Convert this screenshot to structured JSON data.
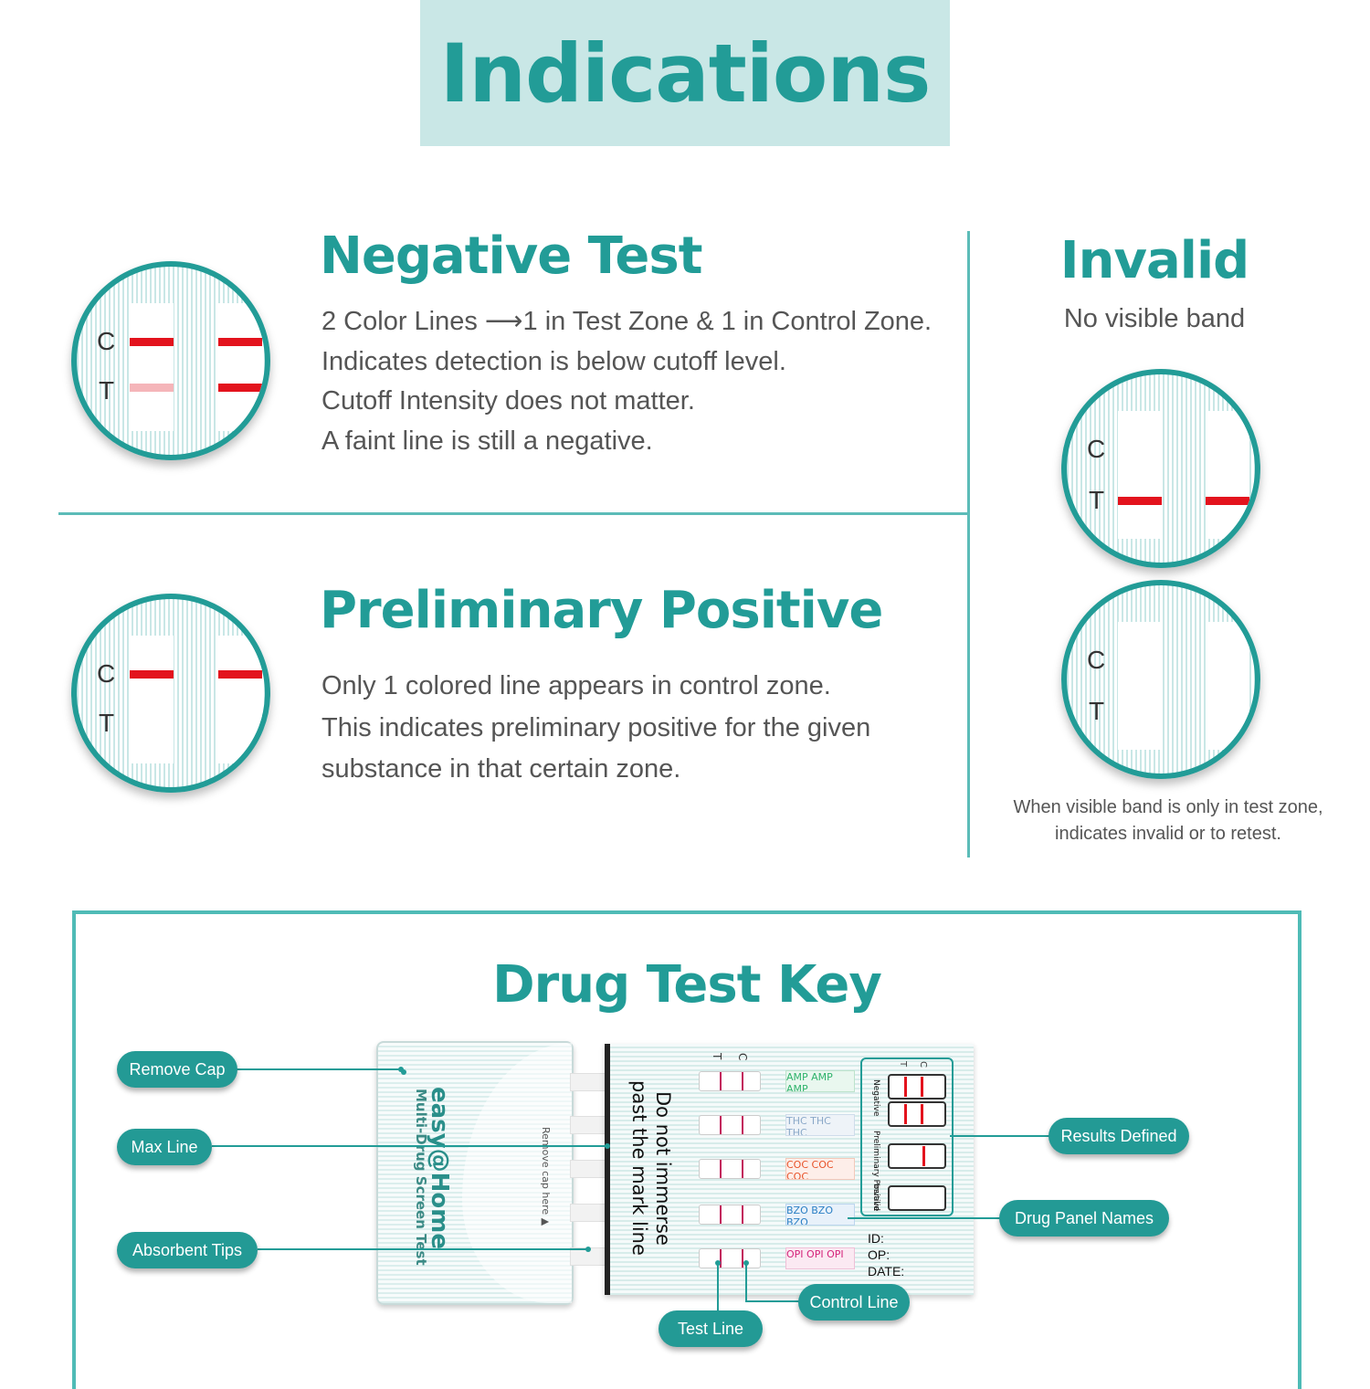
{
  "header": {
    "title": "Indications"
  },
  "negative": {
    "title": "Negative Test",
    "lines": [
      "2 Color Lines ⟶1 in Test Zone & 1 in Control Zone.",
      "Indicates detection is below cutoff level.",
      "Cutoff Intensity does not matter.",
      "A faint line is still a negative."
    ]
  },
  "positive": {
    "title": "Preliminary Positive",
    "lines": [
      "Only 1 colored line appears in control zone.",
      "This indicates preliminary positive for the given",
      "substance in that certain zone."
    ]
  },
  "invalid": {
    "title": "Invalid",
    "subtitle": "No visible band",
    "note_lines": [
      "When visible band is only in test zone,",
      "indicates invalid or to retest."
    ]
  },
  "lens_labels": {
    "c": "C",
    "t": "T"
  },
  "key": {
    "title": "Drug Test Key",
    "callouts": {
      "remove_cap": "Remove Cap",
      "max_line": "Max Line",
      "absorbent_tips": "Absorbent Tips",
      "results_defined": "Results Defined",
      "drug_panel_names": "Drug Panel Names",
      "control_line": "Control Line",
      "test_line": "Test Line"
    },
    "device": {
      "brand": "easy@Home",
      "product": "Multi-Drug Screen Test",
      "cap_hint": "Remove cap here ▲",
      "warning_1": "Do not immerse",
      "warning_2": "past the mark line",
      "panels": [
        "AMP",
        "THC",
        "COC",
        "BZO",
        "OPI"
      ],
      "panel_colors": [
        "#2fb36b",
        "#8aa8c8",
        "#e8532a",
        "#2a7fc4",
        "#d4237a"
      ],
      "results_labels": [
        "Negative",
        "Preliminary Positive",
        "Invalid"
      ],
      "results_ct": [
        "C",
        "T"
      ],
      "strip_ct": [
        "T",
        "C"
      ],
      "form_fields": [
        "ID:",
        "OP:",
        "DATE:"
      ]
    }
  },
  "colors": {
    "teal": "#229c97",
    "title_bg": "#c9e7e6",
    "band_red": "#e3131d",
    "text_gray": "#555555"
  }
}
